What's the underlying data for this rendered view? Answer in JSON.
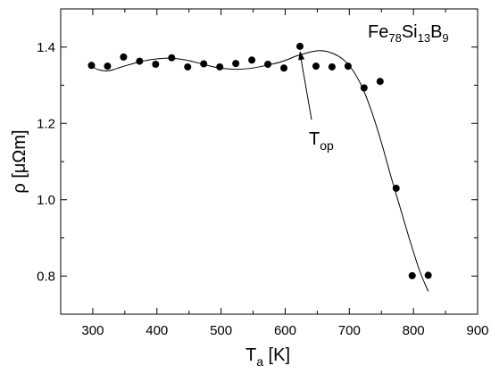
{
  "chart_data": {
    "type": "scatter",
    "xlabel": {
      "base": "T",
      "sub": "a",
      "unit": " [K]"
    },
    "ylabel": "ρ [μΩm]",
    "xlim": [
      250,
      900
    ],
    "ylim": [
      0.7,
      1.5
    ],
    "x_ticks": [
      300,
      400,
      500,
      600,
      700,
      800,
      900
    ],
    "y_ticks": [
      0.8,
      1.0,
      1.2,
      1.4
    ],
    "x_tick_labels": [
      "300",
      "400",
      "500",
      "600",
      "700",
      "800",
      "900"
    ],
    "y_tick_labels": [
      "0.8",
      "1.0",
      "1.2",
      "1.4"
    ],
    "x_minor_step": 50,
    "y_minor_step": 0.1,
    "grid": false,
    "title": {
      "el1": "Fe",
      "n1": "78",
      "el2": "Si",
      "n2": "13",
      "el3": "B",
      "n3": "9"
    },
    "annotation": {
      "base": "T",
      "sub": "op",
      "arrow_to": [
        623,
        1.39
      ]
    },
    "points": [
      {
        "x": 298,
        "y": 1.352
      },
      {
        "x": 323,
        "y": 1.35
      },
      {
        "x": 348,
        "y": 1.374
      },
      {
        "x": 373,
        "y": 1.363
      },
      {
        "x": 398,
        "y": 1.355
      },
      {
        "x": 423,
        "y": 1.372
      },
      {
        "x": 448,
        "y": 1.348
      },
      {
        "x": 473,
        "y": 1.356
      },
      {
        "x": 498,
        "y": 1.348
      },
      {
        "x": 523,
        "y": 1.357
      },
      {
        "x": 548,
        "y": 1.366
      },
      {
        "x": 573,
        "y": 1.355
      },
      {
        "x": 598,
        "y": 1.345
      },
      {
        "x": 623,
        "y": 1.402
      },
      {
        "x": 648,
        "y": 1.35
      },
      {
        "x": 673,
        "y": 1.348
      },
      {
        "x": 698,
        "y": 1.35
      },
      {
        "x": 723,
        "y": 1.293
      },
      {
        "x": 748,
        "y": 1.31
      },
      {
        "x": 773,
        "y": 1.03
      },
      {
        "x": 798,
        "y": 0.801
      },
      {
        "x": 823,
        "y": 0.802
      }
    ],
    "fit_curve": [
      [
        298,
        1.35
      ],
      [
        310,
        1.34
      ],
      [
        325,
        1.338
      ],
      [
        345,
        1.348
      ],
      [
        370,
        1.36
      ],
      [
        395,
        1.368
      ],
      [
        420,
        1.371
      ],
      [
        445,
        1.366
      ],
      [
        470,
        1.356
      ],
      [
        495,
        1.346
      ],
      [
        520,
        1.342
      ],
      [
        545,
        1.344
      ],
      [
        570,
        1.352
      ],
      [
        595,
        1.362
      ],
      [
        620,
        1.378
      ],
      [
        645,
        1.389
      ],
      [
        660,
        1.39
      ],
      [
        675,
        1.383
      ],
      [
        690,
        1.368
      ],
      [
        705,
        1.34
      ],
      [
        720,
        1.295
      ],
      [
        735,
        1.23
      ],
      [
        750,
        1.15
      ],
      [
        765,
        1.06
      ],
      [
        780,
        0.975
      ],
      [
        795,
        0.89
      ],
      [
        810,
        0.812
      ],
      [
        823,
        0.76
      ]
    ]
  }
}
